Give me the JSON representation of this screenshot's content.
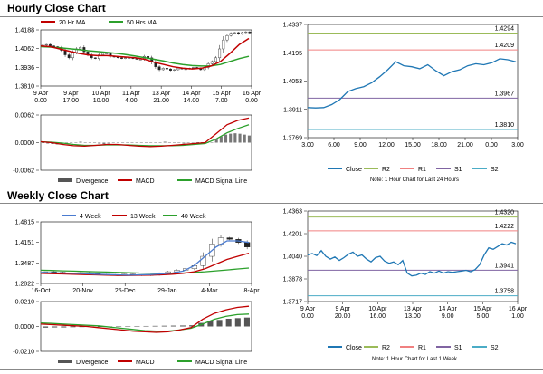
{
  "sections": {
    "hourly_title": "Hourly Close Chart",
    "weekly_title": "Weekly Close Chart"
  },
  "colors": {
    "ma_short": "#c00000",
    "ma_long": "#2ca02c",
    "candle": "#222222",
    "r2": "#9bbb59",
    "r1": "#f08080",
    "s1": "#8064a2",
    "s2": "#4bacc6",
    "close": "#1f77b4",
    "divergence": "#555555",
    "macd": "#c00000",
    "signal": "#2ca02c"
  },
  "chart_data": [
    {
      "id": "hourly-candles",
      "type": "line",
      "legend": [
        "20 Hr MA",
        "50 Hrs MA"
      ],
      "y_ticks": [
        "1.4188",
        "1.4062",
        "1.3936",
        "1.3810"
      ],
      "ylim": [
        1.381,
        1.4188
      ],
      "x_ticks": [
        [
          "9 Apr",
          "0.00"
        ],
        [
          "9 Apr",
          "17.00"
        ],
        [
          "10 Apr",
          "10.00"
        ],
        [
          "11 Apr",
          "4.00"
        ],
        [
          "13 Apr",
          "21.00"
        ],
        [
          "14 Apr",
          "14.00"
        ],
        [
          "15 Apr",
          "7.00"
        ],
        [
          "16 Apr",
          "0.00"
        ]
      ],
      "closes": [
        1.4085,
        1.409,
        1.408,
        1.4075,
        1.407,
        1.405,
        1.402,
        1.4,
        1.4035,
        1.406,
        1.407,
        1.404,
        1.402,
        1.4,
        1.3995,
        1.402,
        1.403,
        1.403,
        1.401,
        1.4005,
        1.4,
        1.3995,
        1.4,
        1.4,
        1.3995,
        1.399,
        1.399,
        1.401,
        1.4,
        1.397,
        1.394,
        1.392,
        1.393,
        1.3925,
        1.3915,
        1.392,
        1.393,
        1.3925,
        1.3925,
        1.393,
        1.3935,
        1.393,
        1.392,
        1.3935,
        1.396,
        1.3975,
        1.4,
        1.406,
        1.412,
        1.415,
        1.4165,
        1.417,
        1.416,
        1.417,
        1.4175,
        1.4168
      ],
      "series": [
        {
          "name": "20 Hr MA",
          "values": [
            1.408,
            1.4075,
            1.406,
            1.4045,
            1.403,
            1.402,
            1.4015,
            1.4015,
            1.401,
            1.4005,
            1.4,
            1.399,
            1.397,
            1.3955,
            1.394,
            1.393,
            1.3925,
            1.393,
            1.3945,
            1.3975,
            1.403,
            1.409,
            1.413
          ]
        },
        {
          "name": "50 Hrs MA",
          "values": [
            1.4075,
            1.4072,
            1.4068,
            1.4062,
            1.4055,
            1.4048,
            1.4042,
            1.4036,
            1.403,
            1.4022,
            1.4012,
            1.4,
            1.399,
            1.3978,
            1.3965,
            1.3955,
            1.3948,
            1.3945,
            1.3946,
            1.3955,
            1.3975,
            1.3995,
            1.401
          ]
        }
      ]
    },
    {
      "id": "hourly-macd",
      "type": "line",
      "legend": [
        "Divergence",
        "MACD",
        "MACD Signal Line"
      ],
      "y_ticks": [
        "0.0062",
        "0.0000",
        "-0.0062"
      ],
      "ylim": [
        -0.0062,
        0.0062
      ],
      "divergence": [
        0.0,
        -0.0002,
        -0.0003,
        -0.0004,
        -0.0003,
        -0.0002,
        0.0,
        0.0001,
        0.0002,
        0.0001,
        0.0,
        -0.0001,
        -0.0002,
        -0.0003,
        -0.0002,
        -0.0001,
        0.0,
        0.0,
        0.0001,
        0.0001,
        0.0001,
        0.0,
        -0.0001,
        -0.0001,
        0.0,
        0.0001,
        0.0002,
        0.0001,
        0.0,
        -0.0001,
        -0.0002,
        -0.0001,
        0.0,
        0.0001,
        0.0001,
        0.0,
        0.0001,
        0.0008,
        0.0014,
        0.0018,
        0.002,
        0.0021,
        0.002,
        0.0018,
        0.0016
      ],
      "series": [
        {
          "name": "MACD",
          "values": [
            0.0002,
            0.0,
            -0.0004,
            -0.0007,
            -0.0008,
            -0.0006,
            -0.0004,
            -0.0004,
            -0.0006,
            -0.0008,
            -0.0009,
            -0.0008,
            -0.0006,
            -0.0004,
            -0.0002,
            0.0,
            0.002,
            0.004,
            0.005,
            0.0055
          ]
        },
        {
          "name": "MACD Signal Line",
          "values": [
            0.0002,
            0.0001,
            -0.0001,
            -0.0004,
            -0.0006,
            -0.0006,
            -0.0005,
            -0.0005,
            -0.0005,
            -0.0006,
            -0.0007,
            -0.0007,
            -0.0007,
            -0.0006,
            -0.0004,
            -0.0002,
            0.0008,
            0.0022,
            0.0032,
            0.004
          ]
        }
      ]
    },
    {
      "id": "hourly-close-line",
      "type": "line",
      "x_ticks": [
        "3.00",
        "6.00",
        "9.00",
        "12.00",
        "15.00",
        "18.00",
        "21.00",
        "0.00",
        "3.00"
      ],
      "y_ticks": [
        "1.4337",
        "1.4195",
        "1.4053",
        "1.3911",
        "1.3769"
      ],
      "ylim": [
        1.3769,
        1.4337
      ],
      "series": [
        {
          "name": "Close",
          "values": [
            1.392,
            1.3918,
            1.392,
            1.3935,
            1.396,
            1.4,
            1.4015,
            1.4025,
            1.4045,
            1.4075,
            1.411,
            1.415,
            1.413,
            1.4125,
            1.4115,
            1.4135,
            1.4105,
            1.408,
            1.41,
            1.411,
            1.413,
            1.414,
            1.4135,
            1.4145,
            1.4165,
            1.416,
            1.415
          ]
        }
      ],
      "levels": [
        {
          "name": "R2",
          "value": 1.4294,
          "label": "1.4294"
        },
        {
          "name": "R1",
          "value": 1.4209,
          "label": "1.4209"
        },
        {
          "name": "S1",
          "value": 1.3967,
          "label": "1.3967"
        },
        {
          "name": "S2",
          "value": 1.381,
          "label": "1.3810"
        }
      ],
      "legend": [
        "Close",
        "R2",
        "R1",
        "S1",
        "S2"
      ],
      "note": "Note: 1 Hour Chart for Last 24 Hours"
    },
    {
      "id": "weekly-candles",
      "type": "line",
      "legend": [
        "4 Week",
        "13 Week",
        "40 Week"
      ],
      "y_ticks": [
        "1.4815",
        "1.4151",
        "1.3487",
        "1.2822"
      ],
      "ylim": [
        1.2822,
        1.4815
      ],
      "x_ticks": [
        "16-Oct",
        "20-Nov",
        "25-Dec",
        "29-Jan",
        "4-Mar",
        "8-Apr"
      ],
      "closes": [
        1.32,
        1.318,
        1.315,
        1.316,
        1.317,
        1.315,
        1.312,
        1.31,
        1.311,
        1.312,
        1.31,
        1.308,
        1.31,
        1.315,
        1.32,
        1.325,
        1.33,
        1.34,
        1.37,
        1.41,
        1.43,
        1.425,
        1.415,
        1.4
      ],
      "series": [
        {
          "name": "4 Week",
          "values": [
            1.318,
            1.317,
            1.316,
            1.315,
            1.314,
            1.312,
            1.311,
            1.31,
            1.309,
            1.31,
            1.311,
            1.313,
            1.316,
            1.322,
            1.34,
            1.37,
            1.4,
            1.42,
            1.42,
            1.415
          ]
        },
        {
          "name": "13 Week",
          "values": [
            1.315,
            1.314,
            1.313,
            1.312,
            1.311,
            1.31,
            1.309,
            1.308,
            1.308,
            1.3085,
            1.309,
            1.31,
            1.312,
            1.315,
            1.32,
            1.33,
            1.345,
            1.36,
            1.37,
            1.38
          ]
        },
        {
          "name": "40 Week",
          "values": [
            1.325,
            1.324,
            1.323,
            1.322,
            1.321,
            1.32,
            1.319,
            1.318,
            1.317,
            1.316,
            1.3155,
            1.315,
            1.315,
            1.316,
            1.318,
            1.32,
            1.323,
            1.326,
            1.329,
            1.332
          ]
        }
      ]
    },
    {
      "id": "weekly-macd",
      "type": "line",
      "legend": [
        "Divergence",
        "MACD",
        "MACD Signal Line"
      ],
      "y_ticks": [
        "0.0210",
        "0.0000",
        "-0.0210"
      ],
      "ylim": [
        -0.021,
        0.021
      ],
      "divergence": [
        -0.001,
        -0.0008,
        -0.0008,
        -0.0006,
        -0.0005,
        -0.0004,
        -0.0003,
        -0.0003,
        -0.0002,
        0.0,
        0.0002,
        0.0004,
        0.0005,
        0.0006,
        0.0007,
        0.0008,
        0.001,
        0.003,
        0.0045,
        0.0055,
        0.0065,
        0.007,
        0.0075
      ],
      "series": [
        {
          "name": "MACD",
          "values": [
            0.002,
            0.0015,
            0.001,
            0.0005,
            0.0,
            -0.001,
            -0.002,
            -0.003,
            -0.004,
            -0.0045,
            -0.005,
            -0.0045,
            -0.003,
            -0.001,
            0.006,
            0.011,
            0.014,
            0.016,
            0.017
          ]
        },
        {
          "name": "MACD Signal Line",
          "values": [
            0.003,
            0.0025,
            0.002,
            0.0015,
            0.001,
            0.0005,
            -0.0005,
            -0.0015,
            -0.0025,
            -0.0035,
            -0.004,
            -0.004,
            -0.003,
            -0.0015,
            0.002,
            0.006,
            0.0085,
            0.01,
            0.0105
          ]
        }
      ]
    },
    {
      "id": "weekly-close-line",
      "type": "line",
      "x_ticks": [
        [
          "9 Apr",
          "0.00"
        ],
        [
          "9 Apr",
          "20.00"
        ],
        [
          "10 Apr",
          "16.00"
        ],
        [
          "13 Apr",
          "13.00"
        ],
        [
          "14 Apr",
          "9.00"
        ],
        [
          "15 Apr",
          "5.00"
        ],
        [
          "16 Apr",
          "1.00"
        ]
      ],
      "y_ticks": [
        "1.4363",
        "1.4201",
        "1.4040",
        "1.3878",
        "1.3717"
      ],
      "ylim": [
        1.3717,
        1.4363
      ],
      "series": [
        {
          "name": "Close",
          "values": [
            1.405,
            1.406,
            1.4045,
            1.408,
            1.404,
            1.402,
            1.4035,
            1.401,
            1.403,
            1.4055,
            1.407,
            1.404,
            1.405,
            1.402,
            1.4,
            1.403,
            1.404,
            1.4005,
            1.399,
            1.4,
            1.398,
            1.401,
            1.392,
            1.39,
            1.3905,
            1.392,
            1.391,
            1.393,
            1.392,
            1.3935,
            1.392,
            1.393,
            1.3925,
            1.393,
            1.3935,
            1.394,
            1.393,
            1.3945,
            1.398,
            1.405,
            1.41,
            1.409,
            1.411,
            1.413,
            1.412,
            1.414,
            1.413
          ]
        }
      ],
      "levels": [
        {
          "name": "R2",
          "value": 1.432,
          "label": "1.4320"
        },
        {
          "name": "R1",
          "value": 1.4222,
          "label": "1.4222"
        },
        {
          "name": "S1",
          "value": 1.3941,
          "label": "1.3941"
        },
        {
          "name": "S2",
          "value": 1.3758,
          "label": "1.3758"
        }
      ],
      "legend": [
        "Close",
        "R2",
        "R1",
        "S1",
        "S2"
      ],
      "note": "Note: 1 Hour Chart for Last 1 Week"
    }
  ]
}
